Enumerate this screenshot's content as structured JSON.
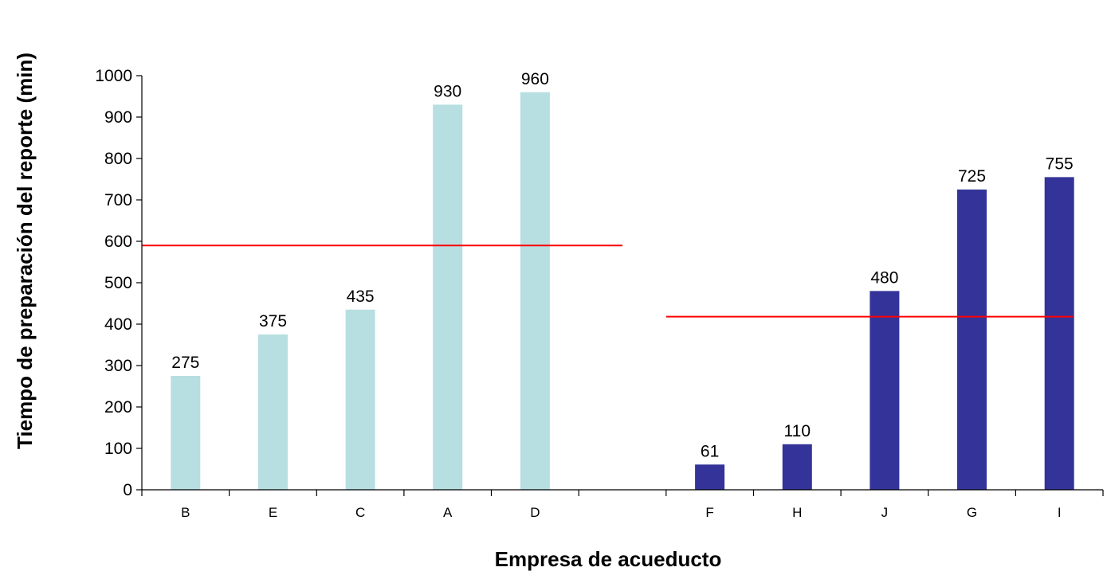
{
  "chart_data": {
    "type": "bar",
    "title": "",
    "xlabel": "Empresa de acueducto",
    "ylabel": "Tiempo de preparación del reporte  (min)",
    "ylim": [
      0,
      1000
    ],
    "yticks": [
      0,
      100,
      200,
      300,
      400,
      500,
      600,
      700,
      800,
      900,
      1000
    ],
    "grid": false,
    "legend": "none",
    "categories": [
      "B",
      "E",
      "C",
      "A",
      "D",
      "",
      "F",
      "H",
      "J",
      "G",
      "I"
    ],
    "series": [
      {
        "color": "#B7DEE1",
        "values": [
          275,
          375,
          435,
          930,
          960,
          null,
          null,
          null,
          null,
          null,
          null
        ]
      },
      {
        "color": "#333399",
        "values": [
          null,
          null,
          null,
          null,
          null,
          null,
          61,
          110,
          480,
          725,
          755
        ]
      }
    ],
    "reference_lines": [
      {
        "y": 590,
        "from_category": "B",
        "to_category": "D",
        "color": "#FF0000"
      },
      {
        "y": 418,
        "from_category": "F",
        "to_category": "I",
        "color": "#FF0000"
      }
    ]
  }
}
